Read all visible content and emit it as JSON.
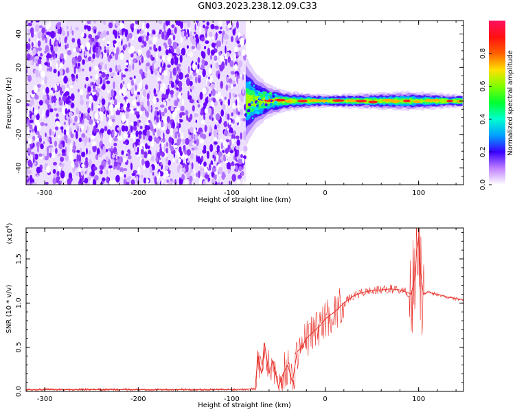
{
  "title": "GN03.2023.238.12.09.C33",
  "chart_data": [
    {
      "type": "heatmap",
      "xlabel": "Height of straight line (km)",
      "ylabel": "Frequency (Hz)",
      "xlim": [
        -320,
        148
      ],
      "ylim": [
        -50,
        48
      ],
      "xticks": [
        -300,
        -200,
        -100,
        0,
        100
      ],
      "yticks": [
        -40,
        -20,
        0,
        20,
        40
      ],
      "noise_region_x": [
        -320,
        -85
      ],
      "signal_band": [
        {
          "x": -85,
          "spread": 14
        },
        {
          "x": -75,
          "spread": 9
        },
        {
          "x": -60,
          "spread": 5
        },
        {
          "x": -40,
          "spread": 3
        },
        {
          "x": 0,
          "spread": 2
        },
        {
          "x": 90,
          "spread": 3
        },
        {
          "x": 148,
          "spread": 2
        }
      ],
      "colorbar": {
        "label": "Normalized spectral amplitude",
        "range": [
          0.0,
          1.0
        ],
        "ticks": [
          "0.0",
          "0.2",
          "0.4",
          "0.6",
          "0.8"
        ]
      }
    },
    {
      "type": "line",
      "xlabel": "Height of straight line (km)",
      "ylabel": "SNR (10 * v/v)",
      "multiplier": "(x10",
      "multiplier_exp": "4",
      "xlim": [
        -320,
        148
      ],
      "ylim": [
        0.0,
        1.85
      ],
      "xticks": [
        -300,
        -200,
        -100,
        0,
        100
      ],
      "yticks": [
        "0.0",
        "0.5",
        "1.0",
        "1.5"
      ],
      "series": [
        {
          "color": "#e8302a",
          "x": [
            -320,
            -200,
            -100,
            -75,
            -72,
            -68,
            -65,
            -60,
            -56,
            -52,
            -50,
            -45,
            -40,
            -35,
            -30,
            -25,
            -20,
            -15,
            -10,
            -5,
            0,
            10,
            20,
            30,
            40,
            50,
            60,
            70,
            80,
            88,
            92,
            96,
            98,
            100,
            102,
            105,
            110,
            120,
            130,
            140,
            148
          ],
          "y": [
            0.02,
            0.02,
            0.02,
            0.03,
            0.4,
            0.2,
            0.55,
            0.2,
            0.35,
            0.15,
            0.05,
            0.2,
            0.3,
            0.1,
            0.45,
            0.5,
            0.6,
            0.65,
            0.7,
            0.75,
            0.82,
            0.9,
            1.0,
            1.08,
            1.12,
            1.14,
            1.15,
            1.16,
            1.15,
            1.12,
            1.1,
            1.3,
            1.6,
            1.75,
            1.35,
            1.1,
            1.12,
            1.1,
            1.07,
            1.05,
            1.04
          ]
        }
      ]
    }
  ]
}
